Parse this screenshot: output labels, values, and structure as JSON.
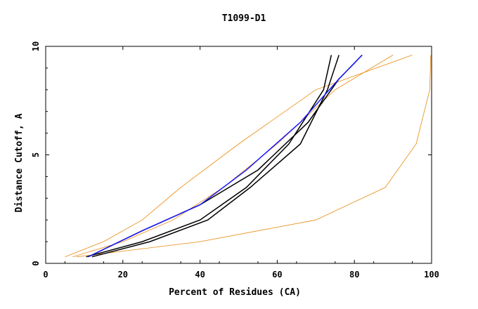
{
  "chart_data": {
    "type": "line",
    "title": "T1099-D1",
    "xlabel": "Percent of Residues (CA)",
    "ylabel": "Distance Cutoff, A",
    "xlim": [
      0,
      100
    ],
    "ylim": [
      0,
      10
    ],
    "x_ticks": [
      "0",
      "20",
      "40",
      "60",
      "80",
      "100"
    ],
    "y_ticks": [
      "0",
      "5",
      "10"
    ],
    "x_tick_values": [
      0,
      20,
      40,
      60,
      80,
      100
    ],
    "y_tick_values": [
      0,
      5,
      10
    ],
    "grid": false,
    "legend": "none",
    "colors": {
      "bundle": "#e8890c",
      "highlight": "#000000",
      "best": "#1a1aff",
      "axis": "#000000"
    },
    "series_groups": [
      {
        "role": "bundle",
        "x": [
          5,
          15,
          25,
          35,
          50,
          70,
          95
        ],
        "y": [
          0.3,
          1,
          2,
          3.5,
          5.5,
          8,
          9.6
        ]
      },
      {
        "role": "bundle",
        "x": [
          7,
          20,
          33,
          46,
          60,
          75,
          90
        ],
        "y": [
          0.3,
          1,
          2,
          3.5,
          5.5,
          8,
          9.6
        ]
      },
      {
        "role": "outlier",
        "x": [
          8,
          40,
          70,
          88,
          96,
          99.5,
          99.8
        ],
        "y": [
          0.3,
          1,
          2,
          3.5,
          5.5,
          8,
          9.6
        ]
      },
      {
        "role": "highlight",
        "x": [
          11,
          25,
          40,
          55,
          68,
          76,
          82
        ],
        "y": [
          0.3,
          1.5,
          2.7,
          4.3,
          6.5,
          8.5,
          9.6
        ]
      },
      {
        "role": "highlight",
        "x": [
          10.5,
          25,
          40,
          52,
          63,
          72,
          74
        ],
        "y": [
          0.3,
          1,
          2,
          3.5,
          5.5,
          8,
          9.6
        ]
      },
      {
        "role": "highlight",
        "x": [
          12,
          27,
          42,
          53,
          66,
          73,
          76
        ],
        "y": [
          0.3,
          1,
          2,
          3.5,
          5.5,
          8,
          9.6
        ]
      },
      {
        "role": "best",
        "x": [
          11,
          25,
          40,
          52,
          66,
          76,
          82
        ],
        "y": [
          0.3,
          1.5,
          2.7,
          4.3,
          6.5,
          8.5,
          9.6
        ]
      }
    ]
  }
}
